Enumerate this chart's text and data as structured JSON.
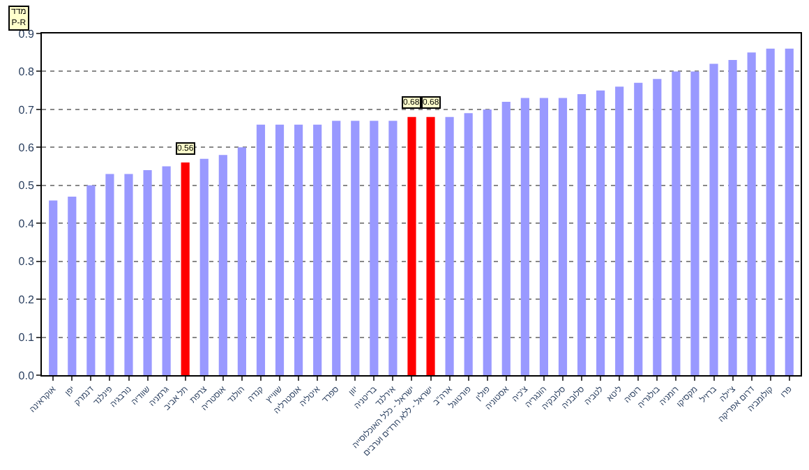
{
  "chart_data": {
    "type": "bar",
    "categories": [
      "אוקראינה",
      "יפן",
      "דנמרק",
      "פינלנד",
      "נורבגיה",
      "שוודיה",
      "גרמניה",
      "תל אביב",
      "צרפת",
      "אוסטריה",
      "הולנד",
      "קנדה",
      "שווייץ",
      "אוסטרליה",
      "איטליה",
      "ספרד",
      "יוון",
      "בריטניה",
      "אירלנד",
      "ישראל - כלל האוכלוסייה",
      "ישראל - ללא חרדים וערבים",
      "ארה\"ב",
      "פורטוגל",
      "פולין",
      "אסטוניה",
      "צ'כיה",
      "הונגריה",
      "סלובקיה",
      "סלובניה",
      "לטביה",
      "ליטא",
      "רוסיה",
      "בולגריה",
      "רומניה",
      "מקסיקו",
      "ברזיל",
      "צ'ילה",
      "דרום אפריקה",
      "קולומביה",
      "פרו"
    ],
    "values": [
      0.46,
      0.47,
      0.5,
      0.53,
      0.53,
      0.54,
      0.55,
      0.56,
      0.57,
      0.58,
      0.6,
      0.66,
      0.66,
      0.66,
      0.66,
      0.67,
      0.67,
      0.67,
      0.67,
      0.68,
      0.68,
      0.68,
      0.69,
      0.7,
      0.72,
      0.73,
      0.73,
      0.73,
      0.74,
      0.75,
      0.76,
      0.77,
      0.78,
      0.8,
      0.8,
      0.82,
      0.83,
      0.85,
      0.86,
      0.86
    ],
    "colors": [
      "#9999ff",
      "#9999ff",
      "#9999ff",
      "#9999ff",
      "#9999ff",
      "#9999ff",
      "#9999ff",
      "#ff0000",
      "#9999ff",
      "#9999ff",
      "#9999ff",
      "#9999ff",
      "#9999ff",
      "#9999ff",
      "#9999ff",
      "#9999ff",
      "#9999ff",
      "#9999ff",
      "#9999ff",
      "#ff0000",
      "#ff0000",
      "#9999ff",
      "#9999ff",
      "#9999ff",
      "#9999ff",
      "#9999ff",
      "#9999ff",
      "#9999ff",
      "#9999ff",
      "#9999ff",
      "#9999ff",
      "#9999ff",
      "#9999ff",
      "#9999ff",
      "#9999ff",
      "#9999ff",
      "#9999ff",
      "#9999ff",
      "#9999ff",
      "#9999ff"
    ],
    "value_labels": [
      null,
      null,
      null,
      null,
      null,
      null,
      null,
      "0.56",
      null,
      null,
      null,
      null,
      null,
      null,
      null,
      null,
      null,
      null,
      null,
      "0.68",
      "0.68",
      null,
      null,
      null,
      null,
      null,
      null,
      null,
      null,
      null,
      null,
      null,
      null,
      null,
      null,
      null,
      null,
      null,
      null,
      null
    ],
    "ylim": [
      0,
      0.9
    ],
    "yticks": [
      {
        "value": 0,
        "label": "0.0"
      },
      {
        "value": 0.1,
        "label": "0.1"
      },
      {
        "value": 0.2,
        "label": "0.2"
      },
      {
        "value": 0.3,
        "label": "0.3"
      },
      {
        "value": 0.4,
        "label": "0.4"
      },
      {
        "value": 0.5,
        "label": "0.5"
      },
      {
        "value": 0.6,
        "label": "0.6"
      },
      {
        "value": 0.7,
        "label": "0.7"
      },
      {
        "value": 0.8,
        "label": "0.8"
      },
      {
        "value": 0.9,
        "label": "0.9"
      }
    ],
    "grid": "y",
    "annotations": [
      "מדד\nP-R"
    ]
  }
}
